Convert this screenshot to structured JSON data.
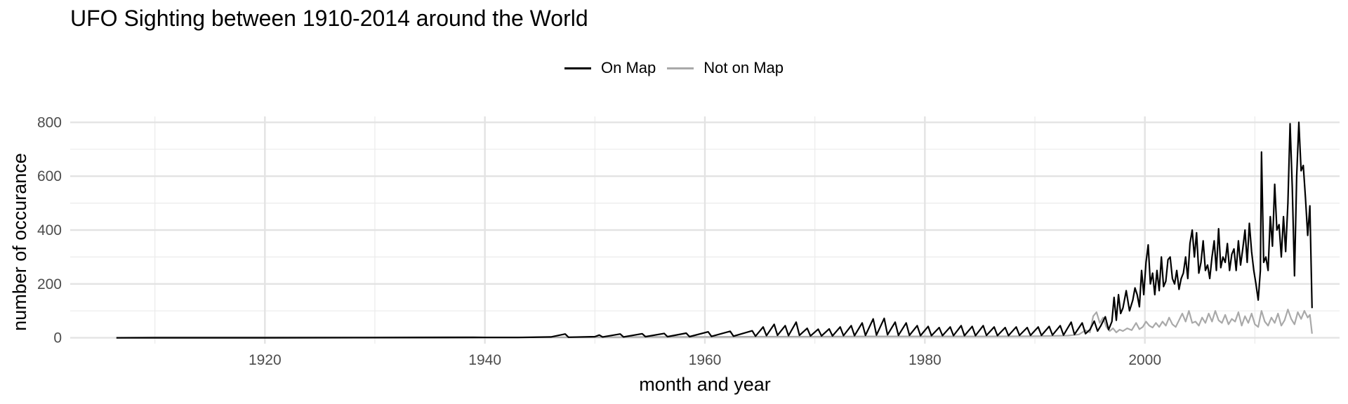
{
  "chart_data": {
    "type": "line",
    "title": "UFO Sighting between 1910-2014 around the World",
    "xlabel": "month and year",
    "ylabel": "number of occurance",
    "xlim": [
      1902.3,
      2017.7
    ],
    "ylim": [
      -22,
      822
    ],
    "x_ticks": [
      1920,
      1940,
      1960,
      1980,
      2000
    ],
    "x_minor_ticks": [
      1910,
      1930,
      1950,
      1970,
      1990,
      2010
    ],
    "y_ticks": [
      0,
      200,
      400,
      600,
      800
    ],
    "y_minor_ticks": [
      100,
      300,
      500,
      700
    ],
    "grid": true,
    "legend_position": "top",
    "series": [
      {
        "name": "On Map",
        "color": "#000000",
        "points": [
          [
            1906.5,
            0
          ],
          [
            1920,
            0
          ],
          [
            1940,
            1
          ],
          [
            1943,
            1
          ],
          [
            1946,
            3
          ],
          [
            1947.3,
            14
          ],
          [
            1947.6,
            2
          ],
          [
            1950,
            4
          ],
          [
            1950.4,
            10
          ],
          [
            1950.7,
            3
          ],
          [
            1952.3,
            14
          ],
          [
            1952.6,
            3
          ],
          [
            1954.3,
            15
          ],
          [
            1954.6,
            4
          ],
          [
            1956.3,
            16
          ],
          [
            1956.6,
            4
          ],
          [
            1958.3,
            17
          ],
          [
            1958.6,
            4
          ],
          [
            1960.3,
            22
          ],
          [
            1960.6,
            5
          ],
          [
            1962.3,
            24
          ],
          [
            1962.6,
            6
          ],
          [
            1964.3,
            26
          ],
          [
            1964.6,
            6
          ],
          [
            1965.3,
            40
          ],
          [
            1965.6,
            8
          ],
          [
            1966.3,
            50
          ],
          [
            1966.6,
            9
          ],
          [
            1967.3,
            45
          ],
          [
            1967.6,
            8
          ],
          [
            1968.3,
            58
          ],
          [
            1968.6,
            9
          ],
          [
            1969.3,
            35
          ],
          [
            1969.6,
            7
          ],
          [
            1970.3,
            32
          ],
          [
            1970.6,
            7
          ],
          [
            1971.3,
            33
          ],
          [
            1971.6,
            7
          ],
          [
            1972.3,
            40
          ],
          [
            1972.6,
            8
          ],
          [
            1973.3,
            45
          ],
          [
            1973.6,
            8
          ],
          [
            1974.3,
            55
          ],
          [
            1974.6,
            9
          ],
          [
            1975.3,
            70
          ],
          [
            1975.6,
            10
          ],
          [
            1976.3,
            72
          ],
          [
            1976.6,
            11
          ],
          [
            1977.3,
            58
          ],
          [
            1977.6,
            9
          ],
          [
            1978.3,
            55
          ],
          [
            1978.6,
            9
          ],
          [
            1979.3,
            45
          ],
          [
            1979.6,
            8
          ],
          [
            1980.3,
            42
          ],
          [
            1980.6,
            8
          ],
          [
            1981.3,
            38
          ],
          [
            1981.6,
            8
          ],
          [
            1982.3,
            40
          ],
          [
            1982.6,
            8
          ],
          [
            1983.3,
            45
          ],
          [
            1983.6,
            8
          ],
          [
            1984.3,
            42
          ],
          [
            1984.6,
            8
          ],
          [
            1985.3,
            45
          ],
          [
            1985.6,
            9
          ],
          [
            1986.3,
            40
          ],
          [
            1986.6,
            8
          ],
          [
            1987.3,
            38
          ],
          [
            1987.6,
            8
          ],
          [
            1988.3,
            40
          ],
          [
            1988.6,
            9
          ],
          [
            1989.3,
            38
          ],
          [
            1989.6,
            9
          ],
          [
            1990.3,
            40
          ],
          [
            1990.6,
            9
          ],
          [
            1991.3,
            42
          ],
          [
            1991.6,
            10
          ],
          [
            1992.3,
            45
          ],
          [
            1992.6,
            10
          ],
          [
            1993.3,
            58
          ],
          [
            1993.6,
            12
          ],
          [
            1994.3,
            55
          ],
          [
            1994.6,
            15
          ],
          [
            1995.0,
            30
          ],
          [
            1995.4,
            62
          ],
          [
            1995.7,
            25
          ],
          [
            1996.0,
            45
          ],
          [
            1996.4,
            78
          ],
          [
            1996.7,
            30
          ],
          [
            1997.0,
            60
          ],
          [
            1997.2,
            150
          ],
          [
            1997.4,
            65
          ],
          [
            1997.6,
            160
          ],
          [
            1997.8,
            90
          ],
          [
            1998.0,
            110
          ],
          [
            1998.3,
            175
          ],
          [
            1998.6,
            100
          ],
          [
            1998.9,
            140
          ],
          [
            1999.1,
            185
          ],
          [
            1999.3,
            160
          ],
          [
            1999.5,
            115
          ],
          [
            1999.7,
            250
          ],
          [
            1999.9,
            160
          ],
          [
            2000.1,
            280
          ],
          [
            2000.3,
            345
          ],
          [
            2000.5,
            200
          ],
          [
            2000.7,
            240
          ],
          [
            2000.9,
            160
          ],
          [
            2001.1,
            250
          ],
          [
            2001.3,
            175
          ],
          [
            2001.5,
            300
          ],
          [
            2001.7,
            190
          ],
          [
            2001.9,
            210
          ],
          [
            2002.1,
            290
          ],
          [
            2002.3,
            300
          ],
          [
            2002.5,
            220
          ],
          [
            2002.7,
            200
          ],
          [
            2002.9,
            250
          ],
          [
            2003.1,
            180
          ],
          [
            2003.3,
            220
          ],
          [
            2003.5,
            240
          ],
          [
            2003.7,
            300
          ],
          [
            2003.9,
            220
          ],
          [
            2004.1,
            350
          ],
          [
            2004.3,
            400
          ],
          [
            2004.5,
            300
          ],
          [
            2004.7,
            390
          ],
          [
            2004.9,
            240
          ],
          [
            2005.1,
            280
          ],
          [
            2005.3,
            360
          ],
          [
            2005.5,
            250
          ],
          [
            2005.7,
            270
          ],
          [
            2005.9,
            220
          ],
          [
            2006.1,
            300
          ],
          [
            2006.3,
            360
          ],
          [
            2006.5,
            250
          ],
          [
            2006.7,
            405
          ],
          [
            2006.9,
            260
          ],
          [
            2007.1,
            300
          ],
          [
            2007.3,
            280
          ],
          [
            2007.5,
            350
          ],
          [
            2007.7,
            250
          ],
          [
            2007.9,
            310
          ],
          [
            2008.1,
            330
          ],
          [
            2008.3,
            250
          ],
          [
            2008.5,
            360
          ],
          [
            2008.7,
            270
          ],
          [
            2008.9,
            330
          ],
          [
            2009.1,
            400
          ],
          [
            2009.3,
            280
          ],
          [
            2009.5,
            425
          ],
          [
            2009.7,
            320
          ],
          [
            2009.9,
            250
          ],
          [
            2010.1,
            200
          ],
          [
            2010.3,
            140
          ],
          [
            2010.5,
            250
          ],
          [
            2010.6,
            690
          ],
          [
            2010.8,
            280
          ],
          [
            2011.0,
            300
          ],
          [
            2011.2,
            250
          ],
          [
            2011.4,
            450
          ],
          [
            2011.6,
            340
          ],
          [
            2011.8,
            570
          ],
          [
            2012.0,
            400
          ],
          [
            2012.2,
            420
          ],
          [
            2012.4,
            300
          ],
          [
            2012.6,
            450
          ],
          [
            2012.8,
            320
          ],
          [
            2013.0,
            500
          ],
          [
            2013.2,
            795
          ],
          [
            2013.4,
            560
          ],
          [
            2013.6,
            230
          ],
          [
            2013.8,
            600
          ],
          [
            2014.0,
            800
          ],
          [
            2014.2,
            620
          ],
          [
            2014.4,
            640
          ],
          [
            2014.6,
            520
          ],
          [
            2014.8,
            380
          ],
          [
            2015.0,
            490
          ],
          [
            2015.2,
            110
          ]
        ]
      },
      {
        "name": "Not on Map",
        "color": "#a9a9a9",
        "points": [
          [
            1906.5,
            0
          ],
          [
            1910,
            2
          ],
          [
            1920,
            2
          ],
          [
            1930,
            2
          ],
          [
            1939,
            3
          ],
          [
            1940,
            2
          ],
          [
            1950,
            2
          ],
          [
            1955,
            3
          ],
          [
            1960,
            3
          ],
          [
            1965,
            4
          ],
          [
            1970,
            4
          ],
          [
            1975,
            5
          ],
          [
            1980,
            5
          ],
          [
            1985,
            5
          ],
          [
            1990,
            6
          ],
          [
            1993,
            8
          ],
          [
            1994,
            12
          ],
          [
            1994.6,
            28
          ],
          [
            1995.0,
            20
          ],
          [
            1995.3,
            80
          ],
          [
            1995.6,
            95
          ],
          [
            1995.9,
            55
          ],
          [
            1996.2,
            75
          ],
          [
            1996.5,
            40
          ],
          [
            1996.8,
            25
          ],
          [
            1997.1,
            35
          ],
          [
            1997.4,
            20
          ],
          [
            1997.7,
            30
          ],
          [
            1998.0,
            25
          ],
          [
            1998.4,
            35
          ],
          [
            1998.8,
            28
          ],
          [
            1999.2,
            55
          ],
          [
            1999.5,
            32
          ],
          [
            1999.8,
            40
          ],
          [
            2000.1,
            60
          ],
          [
            2000.4,
            45
          ],
          [
            2000.7,
            38
          ],
          [
            2001.0,
            55
          ],
          [
            2001.3,
            40
          ],
          [
            2001.6,
            60
          ],
          [
            2001.9,
            45
          ],
          [
            2002.2,
            75
          ],
          [
            2002.5,
            50
          ],
          [
            2002.8,
            40
          ],
          [
            2003.1,
            65
          ],
          [
            2003.4,
            90
          ],
          [
            2003.7,
            60
          ],
          [
            2004.0,
            100
          ],
          [
            2004.3,
            55
          ],
          [
            2004.6,
            60
          ],
          [
            2004.9,
            45
          ],
          [
            2005.2,
            75
          ],
          [
            2005.5,
            55
          ],
          [
            2005.8,
            90
          ],
          [
            2006.1,
            60
          ],
          [
            2006.4,
            100
          ],
          [
            2006.7,
            65
          ],
          [
            2007.0,
            55
          ],
          [
            2007.3,
            85
          ],
          [
            2007.6,
            50
          ],
          [
            2007.9,
            70
          ],
          [
            2008.2,
            60
          ],
          [
            2008.5,
            95
          ],
          [
            2008.8,
            45
          ],
          [
            2009.1,
            80
          ],
          [
            2009.4,
            55
          ],
          [
            2009.7,
            90
          ],
          [
            2010.0,
            50
          ],
          [
            2010.3,
            40
          ],
          [
            2010.6,
            100
          ],
          [
            2010.9,
            60
          ],
          [
            2011.2,
            45
          ],
          [
            2011.5,
            75
          ],
          [
            2011.8,
            55
          ],
          [
            2012.1,
            90
          ],
          [
            2012.4,
            45
          ],
          [
            2012.7,
            65
          ],
          [
            2013.0,
            105
          ],
          [
            2013.3,
            70
          ],
          [
            2013.6,
            50
          ],
          [
            2013.9,
            95
          ],
          [
            2014.2,
            70
          ],
          [
            2014.5,
            100
          ],
          [
            2014.8,
            75
          ],
          [
            2015.0,
            85
          ],
          [
            2015.2,
            15
          ]
        ]
      }
    ]
  }
}
